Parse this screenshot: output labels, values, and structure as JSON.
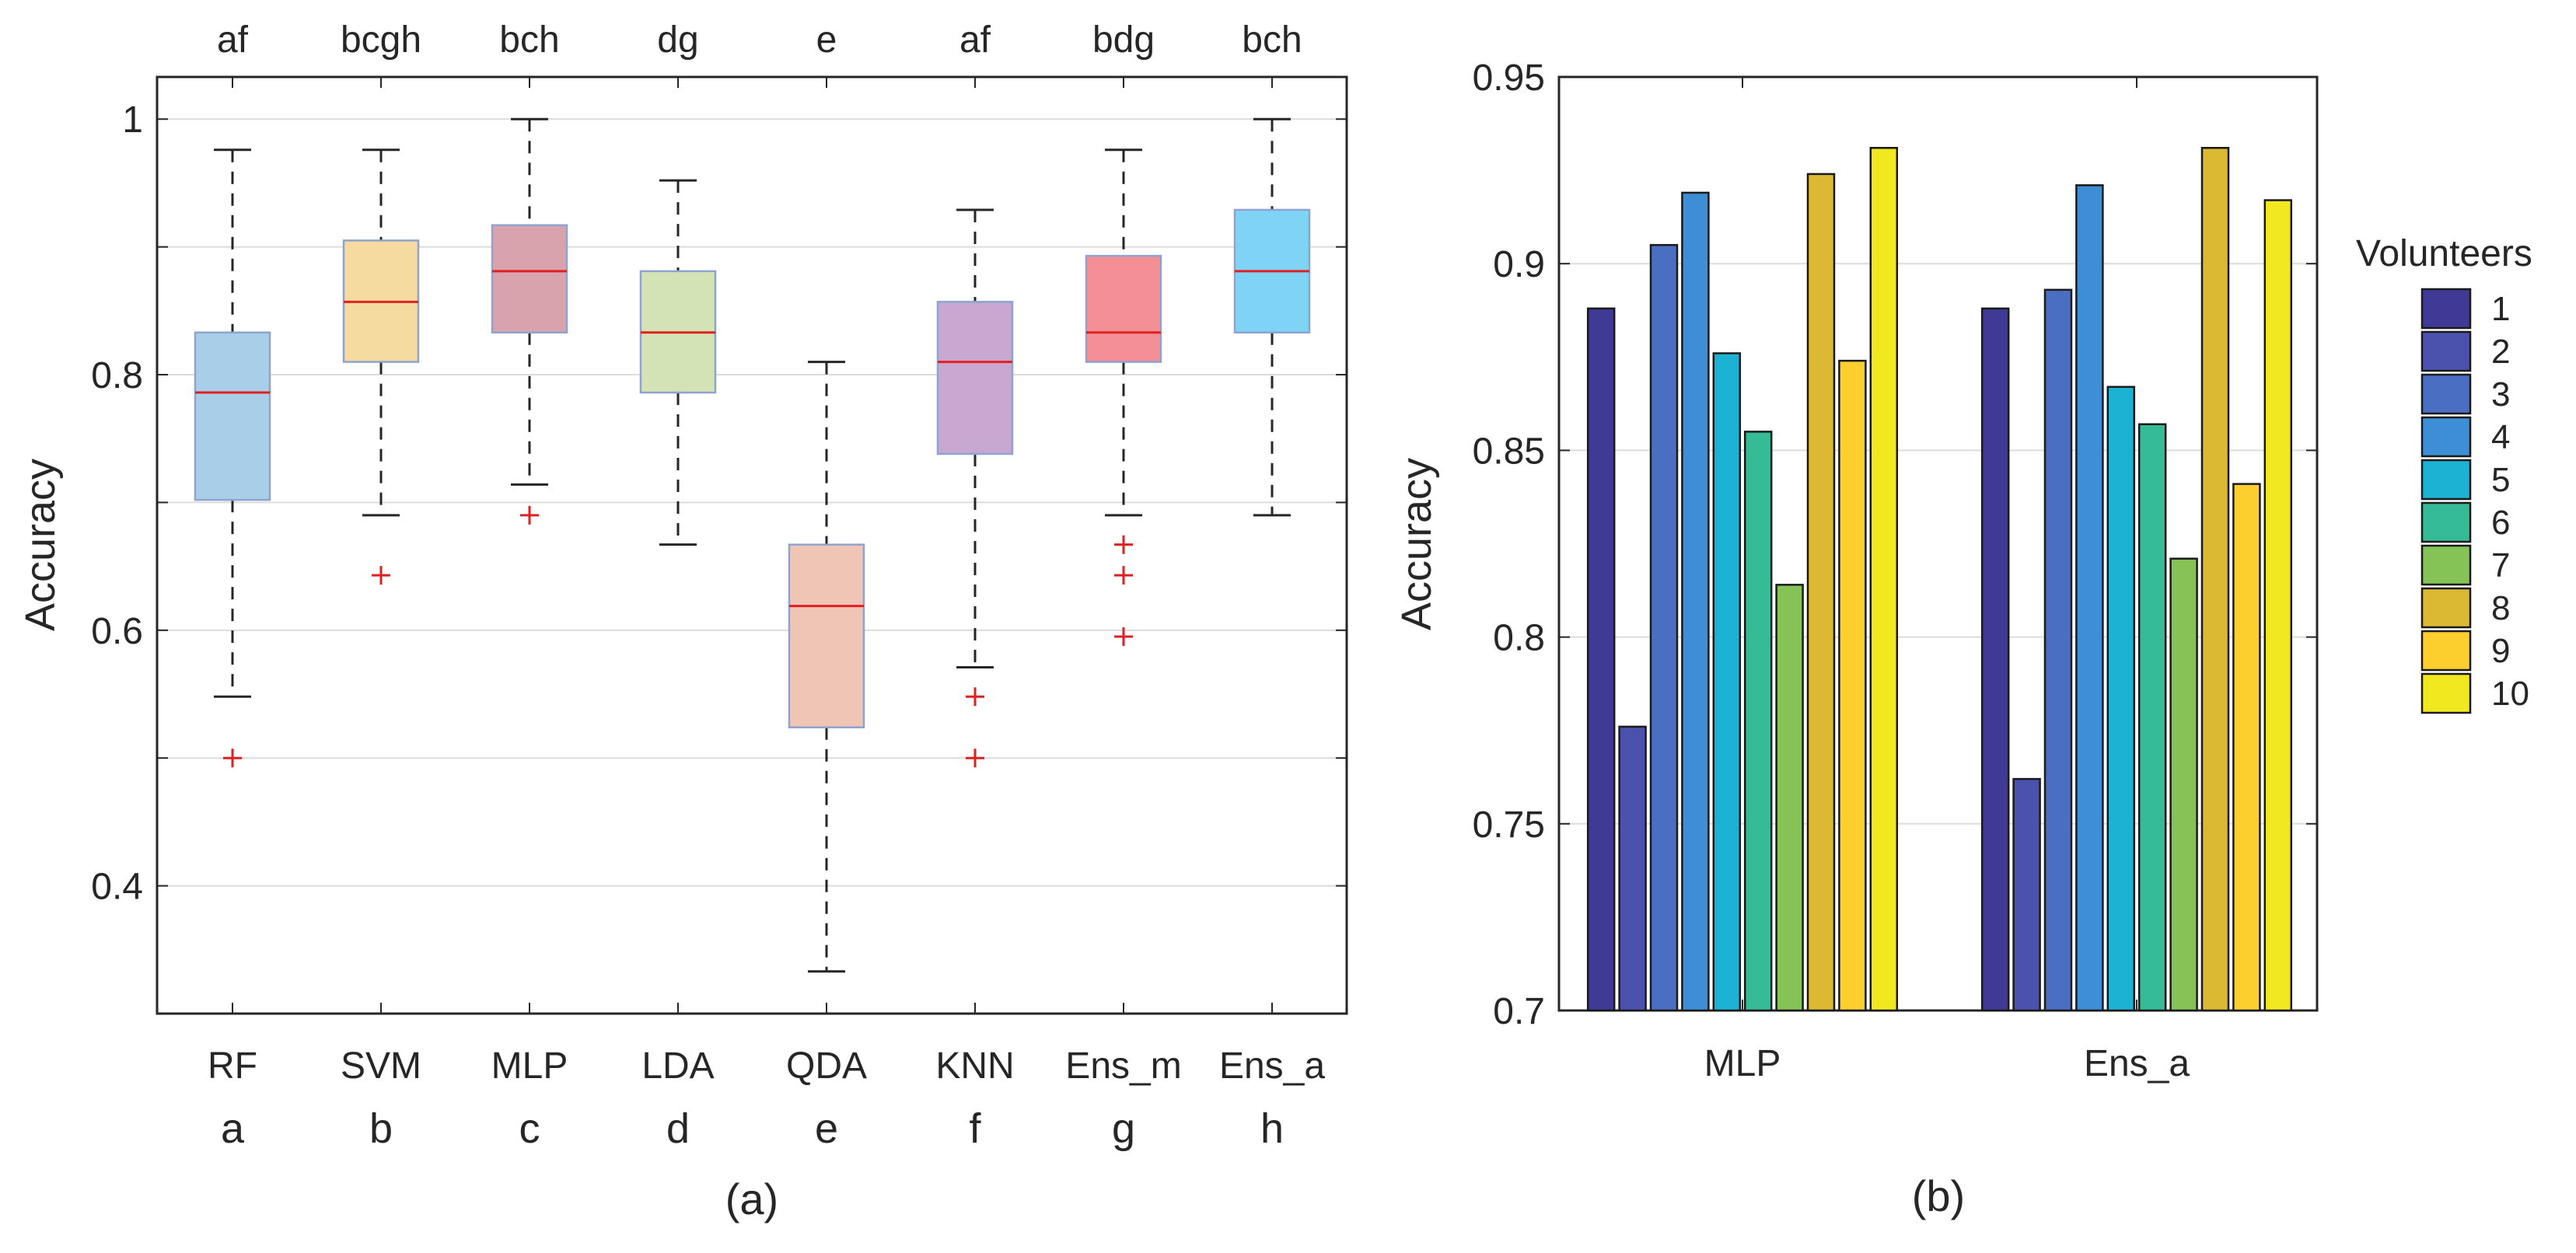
{
  "chart_data": [
    {
      "type": "box",
      "panel_label": "(a)",
      "ylabel": "Accuracy",
      "ylim": [
        0.3,
        1.033
      ],
      "yticks": [
        {
          "v": 0.4,
          "label": "0.4"
        },
        {
          "v": 0.6,
          "label": "0.6"
        },
        {
          "v": 0.8,
          "label": "0.8"
        },
        {
          "v": 1.0,
          "label": "1"
        }
      ],
      "grid_lines": [
        0.4,
        0.5,
        0.6,
        0.7,
        0.8,
        0.9,
        1.0
      ],
      "categories": [
        "RF",
        "SVM",
        "MLP",
        "LDA",
        "QDA",
        "KNN",
        "Ens_m",
        "Ens_a"
      ],
      "letters": [
        "a",
        "b",
        "c",
        "d",
        "e",
        "f",
        "g",
        "h"
      ],
      "significance": [
        "af",
        "bcgh",
        "bch",
        "dg",
        "e",
        "af",
        "bdg",
        "bch"
      ],
      "colors": [
        "#a9cfe8",
        "#f5dba0",
        "#d9a3ae",
        "#d3e3b5",
        "#f0c5b5",
        "#c8a8d0",
        "#f58f96",
        "#7fd4f5"
      ],
      "median_color": "#e02020",
      "outlier_color": "#e02020",
      "boxes": [
        {
          "q1": 0.702,
          "median": 0.786,
          "q3": 0.833,
          "wlow": 0.548,
          "whigh": 0.976,
          "outliers": [
            0.5
          ]
        },
        {
          "q1": 0.81,
          "median": 0.857,
          "q3": 0.905,
          "wlow": 0.69,
          "whigh": 0.976,
          "outliers": [
            0.643
          ]
        },
        {
          "q1": 0.833,
          "median": 0.881,
          "q3": 0.917,
          "wlow": 0.714,
          "whigh": 1.0,
          "outliers": [
            0.69
          ]
        },
        {
          "q1": 0.786,
          "median": 0.833,
          "q3": 0.881,
          "wlow": 0.667,
          "whigh": 0.952,
          "outliers": []
        },
        {
          "q1": 0.524,
          "median": 0.619,
          "q3": 0.667,
          "wlow": 0.333,
          "whigh": 0.81,
          "outliers": []
        },
        {
          "q1": 0.738,
          "median": 0.81,
          "q3": 0.857,
          "wlow": 0.571,
          "whigh": 0.929,
          "outliers": [
            0.548,
            0.5
          ]
        },
        {
          "q1": 0.81,
          "median": 0.833,
          "q3": 0.893,
          "wlow": 0.69,
          "whigh": 0.976,
          "outliers": [
            0.667,
            0.643,
            0.595
          ]
        },
        {
          "q1": 0.833,
          "median": 0.881,
          "q3": 0.929,
          "wlow": 0.69,
          "whigh": 1.0,
          "outliers": []
        }
      ]
    },
    {
      "type": "bar",
      "panel_label": "(b)",
      "ylabel": "Accuracy",
      "ylim": [
        0.7,
        0.95
      ],
      "yticks": [
        {
          "v": 0.7,
          "label": "0.7"
        },
        {
          "v": 0.75,
          "label": "0.75"
        },
        {
          "v": 0.8,
          "label": "0.8"
        },
        {
          "v": 0.85,
          "label": "0.85"
        },
        {
          "v": 0.9,
          "label": "0.9"
        },
        {
          "v": 0.95,
          "label": "0.95"
        }
      ],
      "categories": [
        "MLP",
        "Ens_a"
      ],
      "legend_title": "Volunteers",
      "legend_position": "right",
      "series": [
        {
          "name": "1",
          "color": "#3f3a95",
          "values": [
            0.888,
            0.888
          ]
        },
        {
          "name": "2",
          "color": "#4a52ad",
          "values": [
            0.776,
            0.762
          ]
        },
        {
          "name": "3",
          "color": "#4a6ec2",
          "values": [
            0.905,
            0.893
          ]
        },
        {
          "name": "4",
          "color": "#3d8ed4",
          "values": [
            0.919,
            0.921
          ]
        },
        {
          "name": "5",
          "color": "#1bb2d3",
          "values": [
            0.876,
            0.867
          ]
        },
        {
          "name": "6",
          "color": "#35bb96",
          "values": [
            0.855,
            0.857
          ]
        },
        {
          "name": "7",
          "color": "#86c357",
          "values": [
            0.814,
            0.821
          ]
        },
        {
          "name": "8",
          "color": "#dbb932",
          "values": [
            0.924,
            0.931
          ]
        },
        {
          "name": "9",
          "color": "#fccf2f",
          "values": [
            0.874,
            0.841
          ]
        },
        {
          "name": "10",
          "color": "#f2e81f",
          "values": [
            0.931,
            0.917
          ]
        }
      ]
    }
  ]
}
